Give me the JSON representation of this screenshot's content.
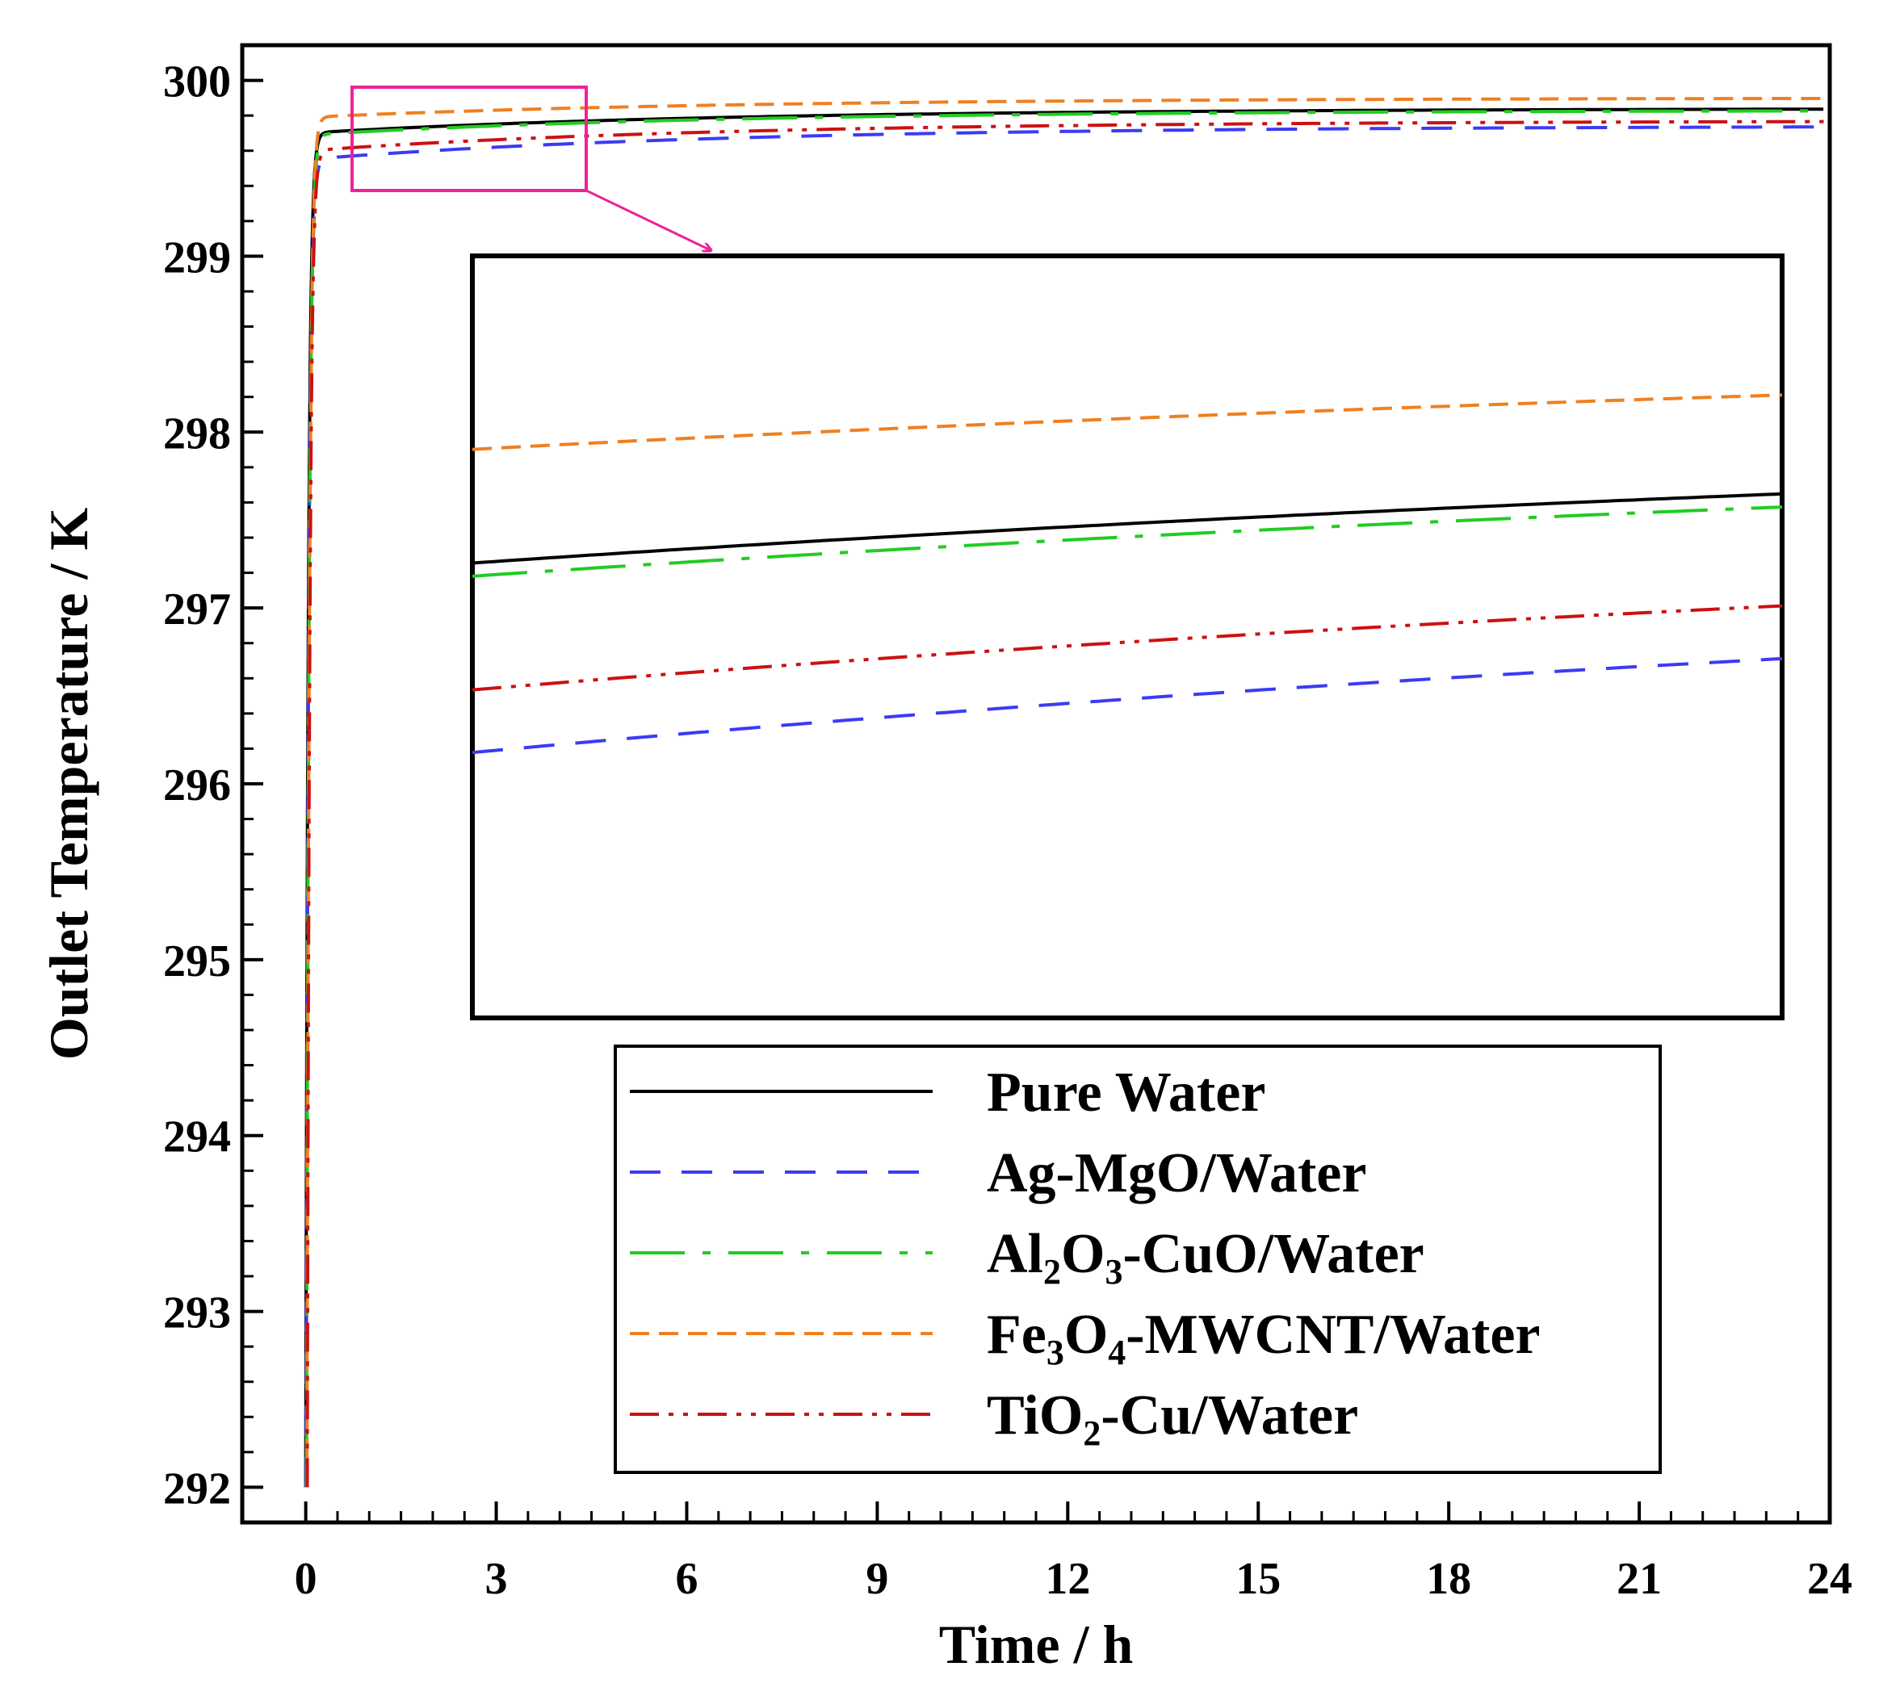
{
  "chart_data": {
    "type": "line",
    "title": "",
    "xlabel": "Time / h",
    "ylabel": "Outlet Temperature / K",
    "xlim": [
      -1,
      24
    ],
    "ylim": [
      291.8,
      300.2
    ],
    "xticks": [
      0,
      3,
      6,
      9,
      12,
      15,
      18,
      21,
      24
    ],
    "yticks": [
      292,
      293,
      294,
      295,
      296,
      297,
      298,
      299,
      300
    ],
    "xtick_labels": [
      "0",
      "3",
      "6",
      "9",
      "12",
      "15",
      "18",
      "21",
      "24"
    ],
    "ytick_labels": [
      "292",
      "293",
      "294",
      "295",
      "296",
      "297",
      "298",
      "299",
      "300"
    ],
    "legend_position": "lower-right",
    "series": [
      {
        "name": "Pure Water",
        "label_parts": [
          "Pure Water"
        ],
        "color": "#000000",
        "dash": "solid",
        "start": 292.0,
        "plateau": 299.7,
        "end": 299.84
      },
      {
        "name": "Ag-MgO/Water",
        "label_parts": [
          "Ag-MgO/Water"
        ],
        "color": "#3b3bf5",
        "dash": "dashed",
        "start": 292.0,
        "plateau": 299.55,
        "end": 299.74
      },
      {
        "name": "Al2O3-CuO/Water",
        "label_parts": [
          "Al",
          "2",
          "O",
          "3",
          "-CuO/Water"
        ],
        "color": "#22cc22",
        "dash": "long-dash-dot",
        "start": 292.0,
        "plateau": 299.69,
        "end": 299.83
      },
      {
        "name": "Fe3O4-MWCNT/Water",
        "label_parts": [
          "Fe",
          "3",
          "O",
          "4",
          "-MWCNT/Water"
        ],
        "color": "#f08020",
        "dash": "short-dash",
        "start": 292.0,
        "plateau": 299.79,
        "end": 299.9
      },
      {
        "name": "TiO2-Cu/Water",
        "label_parts": [
          "TiO",
          "2",
          "-Cu/Water"
        ],
        "color": "#cc1111",
        "dash": "dash-dot-dot",
        "start": 292.0,
        "plateau": 299.6,
        "end": 299.77
      }
    ],
    "inset": {
      "description": "zoomed view of the highlighted region",
      "xlim": [
        0.8,
        4.4
      ],
      "ylim": [
        299.37,
        299.95
      ]
    }
  }
}
